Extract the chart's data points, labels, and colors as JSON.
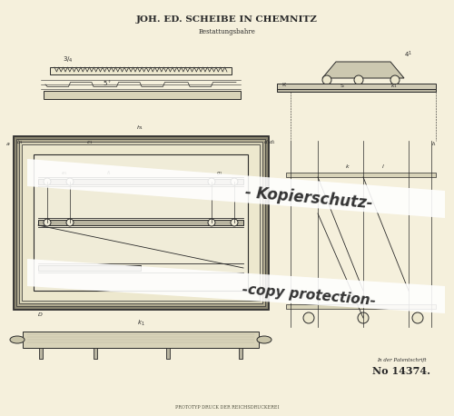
{
  "bg_color": "#f5f0dc",
  "paper_color": "#ede8ce",
  "line_color": "#2a2a2a",
  "title1": "JOH. ED. SCHEIBE IN CHEMNITZ",
  "title2": "Bestattungsbahre",
  "patent_label": "In der Patentschrift",
  "patent_number": "No 14374.",
  "bottom_text": "PROTOTYP DRUCK DER REICHSDRUCKEREI",
  "watermark1": "- Kopierschutz-",
  "watermark2": "-copy protection-",
  "fig_width": 5.0,
  "fig_height": 4.58,
  "dpi": 100
}
